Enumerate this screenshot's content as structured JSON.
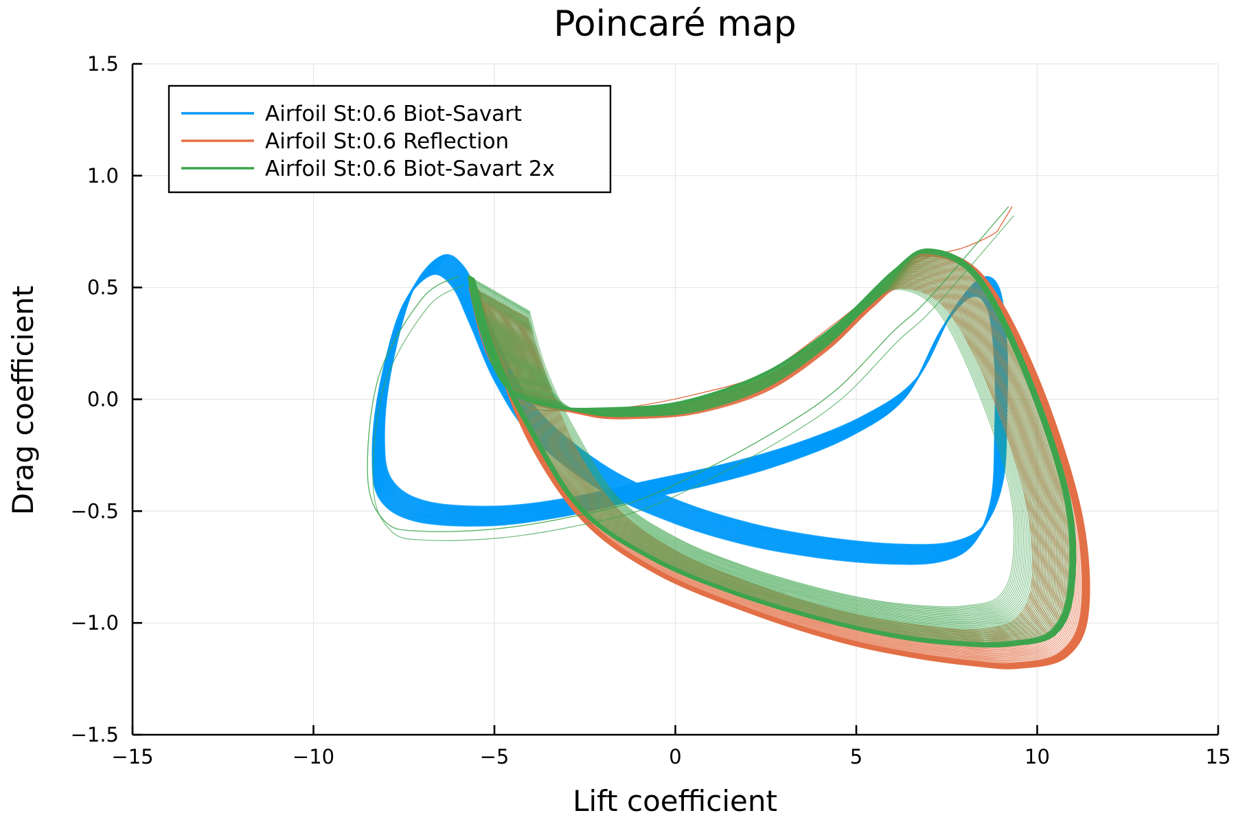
{
  "chart_data": {
    "type": "line",
    "title": "Poincaré map",
    "xlabel": "Lift coefficient",
    "ylabel": "Drag coefficient",
    "xlim": [
      -15,
      15
    ],
    "ylim": [
      -1.5,
      1.5
    ],
    "xticks": [
      -15,
      -10,
      -5,
      0,
      5,
      10,
      15
    ],
    "yticks": [
      -1.5,
      -1.0,
      -0.5,
      0.0,
      0.5,
      1.0,
      1.5
    ],
    "xtick_labels": [
      "−15",
      "−10",
      "−5",
      "0",
      "5",
      "10",
      "15"
    ],
    "ytick_labels": [
      "−1.5",
      "−1.0",
      "−0.5",
      "0.0",
      "0.5",
      "1.0",
      "1.5"
    ],
    "grid": true,
    "legend_position": "top-left",
    "series": [
      {
        "name": "Airfoil St:0.6 Biot-Savart",
        "color": "#009af9",
        "x": [
          -6.6,
          -7.4,
          -8.0,
          -8.2,
          -8.0,
          -7.0,
          -5.0,
          -3.0,
          -1.0,
          1.0,
          3.0,
          5.0,
          6.5,
          7.5,
          8.3,
          8.8,
          9.0,
          9.0,
          8.9,
          8.4,
          7.5,
          6.0,
          4.0,
          2.0,
          0.0,
          -2.0,
          -3.8,
          -4.8,
          -5.5,
          -6.0,
          -6.6
        ],
        "y": [
          0.6,
          0.45,
          0.1,
          -0.2,
          -0.4,
          -0.5,
          -0.52,
          -0.48,
          -0.41,
          -0.34,
          -0.25,
          -0.12,
          0.05,
          0.35,
          0.5,
          0.45,
          0.2,
          -0.1,
          -0.4,
          -0.6,
          -0.68,
          -0.69,
          -0.66,
          -0.6,
          -0.5,
          -0.35,
          -0.12,
          0.12,
          0.38,
          0.55,
          0.6
        ]
      },
      {
        "name": "Airfoil St:0.6 Reflection",
        "color": "#e26f46",
        "x": [
          -5.7,
          -5.2,
          -4.2,
          -3.0,
          -1.5,
          0.5,
          2.5,
          4.5,
          6.5,
          8.0,
          8.8,
          9.0,
          9.3
        ],
        "y": [
          0.5,
          0.2,
          -0.02,
          -0.05,
          -0.04,
          0.02,
          0.12,
          0.35,
          0.6,
          0.68,
          0.74,
          0.78,
          0.86
        ]
      },
      {
        "name": "Airfoil St:0.6 Biot-Savart 2x",
        "color": "#3da44d",
        "x": [
          -6.0,
          -7.0,
          -8.2,
          -8.5,
          -8.0,
          -7.0,
          -5.0,
          -3.0,
          -1.0,
          1.0,
          3.0,
          4.5,
          6.0,
          7.0,
          9.2
        ],
        "y": [
          0.55,
          0.45,
          0.1,
          -0.35,
          -0.55,
          -0.59,
          -0.58,
          -0.53,
          -0.45,
          -0.3,
          -0.12,
          0.05,
          0.3,
          0.45,
          0.86
        ]
      }
    ]
  }
}
